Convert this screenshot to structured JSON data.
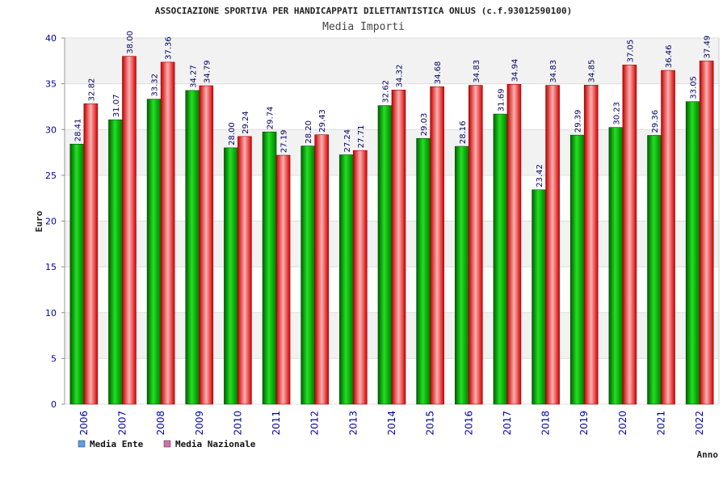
{
  "chart_data": {
    "type": "bar",
    "title": "ASSOCIAZIONE SPORTIVA PER HANDICAPPATI DILETTANTISTICA ONLUS (c.f.93012590100)",
    "subtitle": "Media Importi",
    "xlabel": "Anno",
    "ylabel": "Euro",
    "ylim": [
      0,
      40
    ],
    "yticks": [
      "0",
      "5",
      "10",
      "15",
      "20",
      "25",
      "30",
      "35",
      "40"
    ],
    "categories": [
      "2006",
      "2007",
      "2008",
      "2009",
      "2010",
      "2011",
      "2012",
      "2013",
      "2014",
      "2015",
      "2016",
      "2017",
      "2018",
      "2019",
      "2020",
      "2021",
      "2022"
    ],
    "series": [
      {
        "name": "Media Ente",
        "color": "#00a000",
        "legend_color": "#5aa0e8",
        "values": [
          28.41,
          31.07,
          33.32,
          34.27,
          28.0,
          29.74,
          28.2,
          27.24,
          32.62,
          29.03,
          28.16,
          31.69,
          23.42,
          29.39,
          30.23,
          29.36,
          33.05
        ],
        "labels": [
          "28.41",
          "31.07",
          "33.32",
          "34.27",
          "28.00",
          "29.74",
          "28.20",
          "27.24",
          "32.62",
          "29.03",
          "28.16",
          "31.69",
          "23.42",
          "29.39",
          "30.23",
          "29.36",
          "33.05"
        ]
      },
      {
        "name": "Media Nazionale",
        "color": "#e02020",
        "legend_color": "#d070b0",
        "values": [
          32.82,
          38.0,
          37.36,
          34.79,
          29.24,
          27.19,
          29.43,
          27.71,
          34.32,
          34.68,
          34.83,
          34.94,
          34.83,
          34.85,
          37.05,
          36.46,
          37.49
        ],
        "labels": [
          "32.82",
          "38.00",
          "37.36",
          "34.79",
          "29.24",
          "27.19",
          "29.43",
          "27.71",
          "34.32",
          "34.68",
          "34.83",
          "34.94",
          "34.83",
          "34.85",
          "37.05",
          "36.46",
          "37.49"
        ]
      }
    ],
    "grid": true,
    "legend_position": "bottom-left"
  }
}
